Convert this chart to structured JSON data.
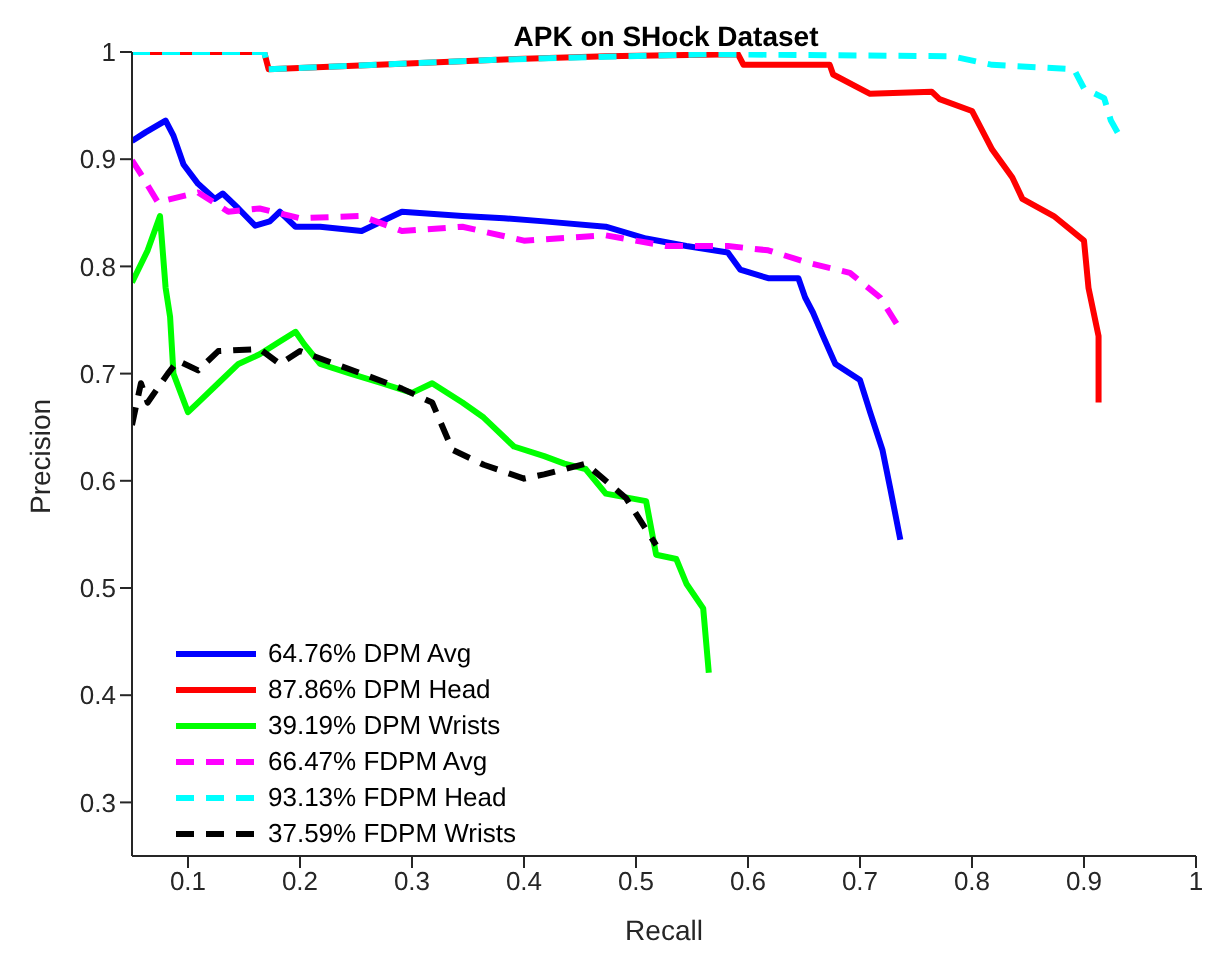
{
  "chart_data": {
    "type": "line",
    "title": "APK on SHock Dataset",
    "xlabel": "Recall",
    "ylabel": "Precision",
    "xlim": [
      0.05,
      1
    ],
    "ylim": [
      0.25,
      1
    ],
    "xticks": [
      0.1,
      0.2,
      0.3,
      0.4,
      0.5,
      0.6,
      0.7,
      0.8,
      0.9,
      1
    ],
    "yticks": [
      0.3,
      0.4,
      0.5,
      0.6,
      0.7,
      0.8,
      0.9,
      1
    ],
    "grid": false,
    "legend": "bottom left",
    "marker": "none",
    "series": [
      {
        "name": "64.76% DPM Avg",
        "color": "#0000ff",
        "line_style": "solid",
        "x": [
          0.05,
          0.062,
          0.08,
          0.087,
          0.096,
          0.109,
          0.124,
          0.131,
          0.145,
          0.16,
          0.173,
          0.182,
          0.196,
          0.218,
          0.255,
          0.291,
          0.345,
          0.382,
          0.418,
          0.473,
          0.509,
          0.545,
          0.582,
          0.593,
          0.618,
          0.645,
          0.651,
          0.658,
          0.667,
          0.678,
          0.7,
          0.709,
          0.72,
          0.727,
          0.736
        ],
        "values": [
          0.917,
          0.925,
          0.936,
          0.922,
          0.895,
          0.877,
          0.863,
          0.868,
          0.854,
          0.838,
          0.842,
          0.851,
          0.837,
          0.837,
          0.833,
          0.851,
          0.847,
          0.845,
          0.842,
          0.837,
          0.826,
          0.819,
          0.813,
          0.797,
          0.789,
          0.789,
          0.771,
          0.757,
          0.735,
          0.709,
          0.694,
          0.664,
          0.629,
          0.593,
          0.545
        ]
      },
      {
        "name": "87.86% DPM Head",
        "color": "#ff0000",
        "line_style": "solid",
        "x": [
          0.05,
          0.168,
          0.172,
          0.291,
          0.382,
          0.473,
          0.591,
          0.596,
          0.673,
          0.676,
          0.709,
          0.764,
          0.771,
          0.8,
          0.818,
          0.836,
          0.845,
          0.873,
          0.9,
          0.904,
          0.913,
          0.913
        ],
        "values": [
          1,
          1,
          0.984,
          0.989,
          0.993,
          0.996,
          0.998,
          0.988,
          0.988,
          0.979,
          0.961,
          0.963,
          0.956,
          0.945,
          0.909,
          0.883,
          0.863,
          0.847,
          0.824,
          0.78,
          0.735,
          0.673
        ]
      },
      {
        "name": "39.19% DPM Wrists",
        "color": "#00ff00",
        "line_style": "solid",
        "x": [
          0.05,
          0.064,
          0.075,
          0.08,
          0.084,
          0.087,
          0.1,
          0.109,
          0.127,
          0.145,
          0.164,
          0.182,
          0.196,
          0.204,
          0.218,
          0.245,
          0.273,
          0.3,
          0.318,
          0.345,
          0.364,
          0.391,
          0.418,
          0.436,
          0.455,
          0.473,
          0.509,
          0.518,
          0.536,
          0.545,
          0.56,
          0.564,
          0.565
        ],
        "values": [
          0.785,
          0.815,
          0.847,
          0.78,
          0.753,
          0.7,
          0.664,
          0.673,
          0.691,
          0.709,
          0.718,
          0.73,
          0.739,
          0.727,
          0.709,
          0.7,
          0.691,
          0.682,
          0.691,
          0.673,
          0.659,
          0.632,
          0.623,
          0.616,
          0.611,
          0.588,
          0.581,
          0.531,
          0.527,
          0.504,
          0.481,
          0.433,
          0.421
        ]
      },
      {
        "name": "66.47% FDPM Avg",
        "color": "#ff00ff",
        "line_style": "dashed",
        "x": [
          0.05,
          0.058,
          0.073,
          0.109,
          0.136,
          0.164,
          0.2,
          0.255,
          0.291,
          0.345,
          0.4,
          0.473,
          0.527,
          0.582,
          0.618,
          0.655,
          0.691,
          0.718,
          0.736
        ],
        "values": [
          0.899,
          0.886,
          0.86,
          0.869,
          0.851,
          0.854,
          0.845,
          0.847,
          0.833,
          0.837,
          0.824,
          0.829,
          0.819,
          0.819,
          0.815,
          0.803,
          0.794,
          0.771,
          0.741
        ]
      },
      {
        "name": "93.13% FDPM Head",
        "color": "#00ffff",
        "line_style": "dashed",
        "x": [
          0.05,
          0.168,
          0.172,
          0.382,
          0.564,
          0.782,
          0.818,
          0.891,
          0.9,
          0.918,
          0.924,
          0.93
        ],
        "values": [
          1,
          1,
          0.984,
          0.993,
          0.998,
          0.996,
          0.988,
          0.984,
          0.966,
          0.957,
          0.936,
          0.925
        ]
      },
      {
        "name": "37.59% FDPM Wrists",
        "color": "#000000",
        "line_style": "dashed",
        "x": [
          0.05,
          0.058,
          0.064,
          0.082,
          0.091,
          0.109,
          0.127,
          0.164,
          0.182,
          0.2,
          0.255,
          0.291,
          0.318,
          0.336,
          0.364,
          0.4,
          0.418,
          0.455,
          0.491,
          0.518
        ],
        "values": [
          0.652,
          0.691,
          0.673,
          0.7,
          0.712,
          0.703,
          0.721,
          0.723,
          0.709,
          0.721,
          0.7,
          0.686,
          0.673,
          0.629,
          0.615,
          0.602,
          0.606,
          0.616,
          0.584,
          0.54
        ]
      }
    ]
  }
}
